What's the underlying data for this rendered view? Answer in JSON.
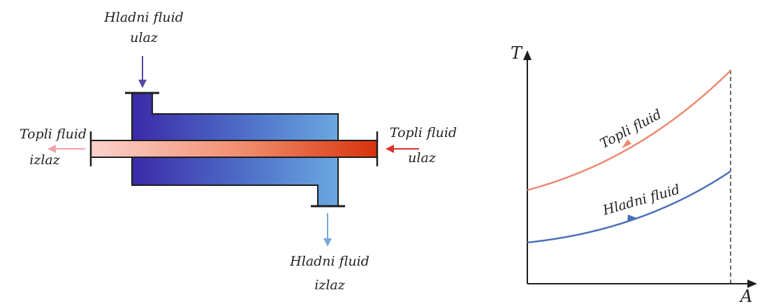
{
  "exchanger": {
    "cold_inlet": {
      "line1": "Hladni fluid",
      "line2": "ulaz"
    },
    "cold_outlet": {
      "line1": "Hladni fluid",
      "line2": "izlaz"
    },
    "hot_inlet": {
      "line1": "Topli fluid",
      "line2": "ulaz"
    },
    "hot_outlet": {
      "line1": "Topli fluid",
      "line2": "izlaz"
    }
  },
  "chart": {
    "y_axis_label": "T",
    "x_axis_label": "A",
    "hot_curve_label": "Topli fluid",
    "cold_curve_label": "Hladni fluid"
  },
  "colors": {
    "cold_dark": "#3b2aa8",
    "cold_light": "#6aa8e0",
    "hot_light": "#fbd2cc",
    "hot_dark": "#d8320c",
    "hot_curve": "#ec8a72",
    "cold_curve": "#4a70b8",
    "hot_outlet_arrow": "#f0a3ae",
    "cold_inlet_arrow": "#5a48a8",
    "cold_outlet_arrow": "#7aa8d8",
    "hot_inlet_arrow": "#d8342a"
  }
}
